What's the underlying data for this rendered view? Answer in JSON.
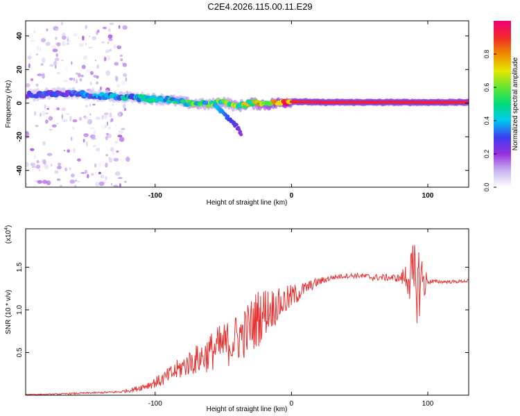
{
  "title": "C2E4.2026.115.00.11.E29",
  "colors": {
    "snr_line": "#e83030",
    "axis": "#000000",
    "colorbar": [
      "#ffffff",
      "#c8b4f0",
      "#9632dc",
      "#3c3cf0",
      "#00c8f0",
      "#00dc78",
      "#64e632",
      "#e6e600",
      "#f08c00",
      "#f02828",
      "#f00078"
    ]
  },
  "chart_data": [
    {
      "type": "heatmap",
      "name": "spectrogram",
      "xlabel": "Height of straight line (km)",
      "ylabel": "Frequency (Hz)",
      "xlim": [
        -195,
        130
      ],
      "ylim": [
        -50,
        49
      ],
      "x_ticks": [
        -100,
        0,
        100
      ],
      "x_tick_labels": [
        "-100",
        "0",
        "100"
      ],
      "y_ticks": [
        -40,
        -20,
        0,
        20,
        40
      ],
      "y_tick_labels": [
        "-40",
        "-20",
        "0",
        "20",
        "40"
      ],
      "colorbar": {
        "label": "Normalized spectral amplitude",
        "range": [
          0,
          1
        ],
        "ticks": [
          0.0,
          0.2,
          0.4,
          0.6,
          0.8
        ],
        "tick_labels": [
          "0.0",
          "0.2",
          "0.4",
          "0.6",
          "0.8"
        ]
      },
      "ridge": {
        "description": "dominant frequency track",
        "x": [
          -195,
          -170,
          -150,
          -130,
          -110,
          -90,
          -75,
          -60,
          -50,
          -40,
          -30,
          -20,
          -10,
          0,
          20,
          60,
          100,
          130
        ],
        "y": [
          5,
          6,
          5,
          4,
          3,
          2,
          0,
          -1,
          1,
          -2,
          0,
          -1,
          0,
          1,
          0.5,
          0.5,
          0.5,
          0.5
        ],
        "amplitude": [
          0.25,
          0.3,
          0.3,
          0.35,
          0.4,
          0.45,
          0.5,
          0.5,
          0.5,
          0.55,
          0.6,
          0.7,
          0.8,
          0.9,
          0.95,
          0.95,
          0.95,
          0.95
        ]
      },
      "noise_regions": [
        {
          "x_range": [
            -195,
            -120
          ],
          "y_range": [
            -50,
            49
          ],
          "amplitude": 0.1
        }
      ],
      "branch": {
        "description": "descending branch",
        "x": [
          -55,
          -50,
          -45,
          -40,
          -37
        ],
        "y": [
          -2,
          -6,
          -10,
          -14,
          -18
        ],
        "amplitude": [
          0.4,
          0.35,
          0.3,
          0.25,
          0.2
        ]
      }
    },
    {
      "type": "line",
      "name": "snr",
      "xlabel": "Height of straight line (km)",
      "ylabel": "SNR (10 * v/v)",
      "multiplier_label": "(x10",
      "multiplier_exponent": "4",
      "multiplier_close": ")",
      "xlim": [
        -195,
        130
      ],
      "ylim": [
        0,
        1.95
      ],
      "x_ticks": [
        -100,
        0,
        100
      ],
      "x_tick_labels": [
        "-100",
        "0",
        "100"
      ],
      "y_ticks": [
        0.5,
        1.0,
        1.5
      ],
      "y_tick_labels": [
        "0.5",
        "1.0",
        "1.5"
      ],
      "series": [
        {
          "name": "SNR",
          "x": [
            -195,
            -180,
            -160,
            -140,
            -125,
            -115,
            -105,
            -95,
            -85,
            -75,
            -65,
            -55,
            -45,
            -35,
            -25,
            -18,
            -10,
            0,
            10,
            20,
            30,
            40,
            50,
            60,
            70,
            80,
            86,
            90,
            95,
            100,
            110,
            120,
            130
          ],
          "y": [
            0.01,
            0.01,
            0.02,
            0.03,
            0.04,
            0.07,
            0.12,
            0.18,
            0.28,
            0.38,
            0.45,
            0.55,
            0.62,
            0.72,
            0.9,
            1.0,
            1.05,
            1.15,
            1.25,
            1.33,
            1.38,
            1.4,
            1.4,
            1.38,
            1.38,
            1.37,
            1.4,
            1.3,
            1.35,
            1.33,
            1.33,
            1.33,
            1.34
          ],
          "noise": [
            0.005,
            0.005,
            0.01,
            0.01,
            0.015,
            0.03,
            0.05,
            0.08,
            0.12,
            0.15,
            0.2,
            0.25,
            0.28,
            0.3,
            0.35,
            0.28,
            0.2,
            0.15,
            0.08,
            0.05,
            0.03,
            0.03,
            0.03,
            0.04,
            0.04,
            0.05,
            0.25,
            0.5,
            0.45,
            0.03,
            0.02,
            0.02,
            0.02
          ]
        }
      ]
    }
  ]
}
